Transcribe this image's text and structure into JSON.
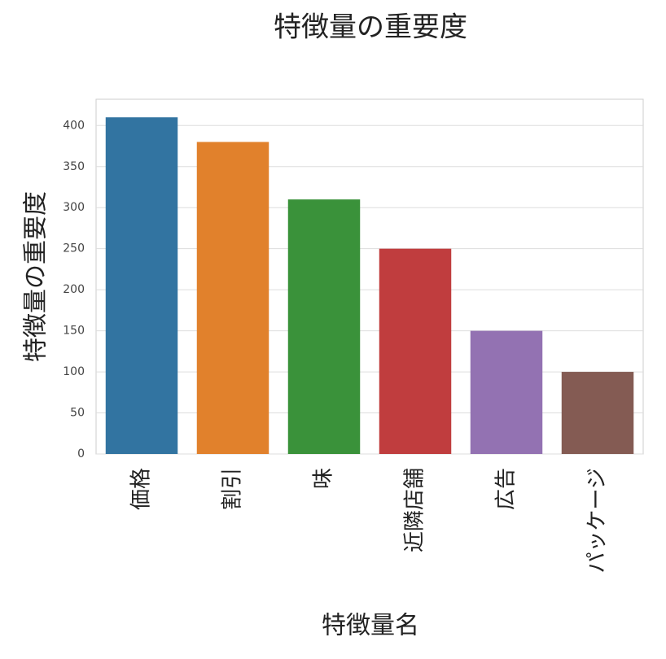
{
  "chart_data": {
    "type": "bar",
    "title": "特徴量の重要度",
    "xlabel": "特徴量名",
    "ylabel": "特徴量の重要度",
    "categories": [
      "価格",
      "割引",
      "味",
      "近隣店舗",
      "広告",
      "パッケージ"
    ],
    "values": [
      410,
      380,
      310,
      250,
      150,
      100
    ],
    "colors": [
      "#3274a1",
      "#e1812c",
      "#3a923a",
      "#c03d3e",
      "#9372b2",
      "#845b53"
    ],
    "ylim": [
      0,
      432
    ],
    "yticks": [
      0,
      50,
      100,
      150,
      200,
      250,
      300,
      350,
      400
    ],
    "grid": true
  }
}
